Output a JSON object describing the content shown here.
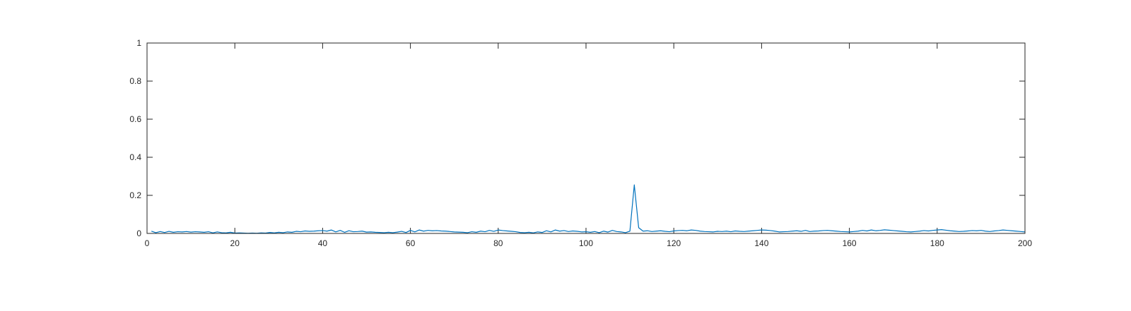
{
  "chart_data": {
    "type": "line",
    "title": "",
    "xlabel": "",
    "ylabel": "",
    "xlim": [
      0,
      200
    ],
    "ylim": [
      0,
      1
    ],
    "xticks": [
      0,
      20,
      40,
      60,
      80,
      100,
      120,
      140,
      160,
      180,
      200
    ],
    "yticks": [
      0,
      0.2,
      0.4,
      0.6,
      0.8,
      1
    ],
    "xtick_labels": [
      "0",
      "20",
      "40",
      "60",
      "80",
      "100",
      "120",
      "140",
      "160",
      "180",
      "200"
    ],
    "ytick_labels": [
      "0",
      "0.2",
      "0.4",
      "0.6",
      "0.8",
      "1"
    ],
    "grid": false,
    "legend": "none",
    "line_color": "#0072BD",
    "series": [
      {
        "x_start": 1,
        "x_step": 1,
        "values": [
          0.012,
          0.004,
          0.01,
          0.005,
          0.011,
          0.006,
          0.009,
          0.008,
          0.01,
          0.007,
          0.009,
          0.008,
          0.006,
          0.009,
          0.003,
          0.008,
          0.004,
          0.003,
          0.006,
          0.002,
          0.003,
          0.002,
          0.001,
          0.002,
          0.001,
          0.003,
          0.002,
          0.005,
          0.003,
          0.006,
          0.004,
          0.008,
          0.006,
          0.011,
          0.009,
          0.013,
          0.011,
          0.012,
          0.014,
          0.015,
          0.012,
          0.018,
          0.008,
          0.016,
          0.006,
          0.014,
          0.009,
          0.01,
          0.012,
          0.007,
          0.008,
          0.006,
          0.005,
          0.004,
          0.006,
          0.004,
          0.007,
          0.011,
          0.005,
          0.016,
          0.008,
          0.018,
          0.012,
          0.016,
          0.014,
          0.015,
          0.013,
          0.012,
          0.01,
          0.008,
          0.007,
          0.006,
          0.004,
          0.009,
          0.006,
          0.012,
          0.009,
          0.016,
          0.011,
          0.018,
          0.015,
          0.013,
          0.011,
          0.009,
          0.005,
          0.004,
          0.006,
          0.003,
          0.008,
          0.005,
          0.014,
          0.008,
          0.018,
          0.012,
          0.015,
          0.01,
          0.013,
          0.011,
          0.008,
          0.009,
          0.006,
          0.01,
          0.004,
          0.012,
          0.007,
          0.016,
          0.01,
          0.008,
          0.004,
          0.012,
          0.255,
          0.03,
          0.012,
          0.014,
          0.01,
          0.012,
          0.014,
          0.011,
          0.009,
          0.013,
          0.015,
          0.016,
          0.014,
          0.018,
          0.016,
          0.012,
          0.01,
          0.009,
          0.008,
          0.011,
          0.01,
          0.012,
          0.009,
          0.013,
          0.011,
          0.01,
          0.012,
          0.014,
          0.016,
          0.018,
          0.017,
          0.015,
          0.012,
          0.008,
          0.009,
          0.01,
          0.012,
          0.014,
          0.011,
          0.016,
          0.01,
          0.012,
          0.013,
          0.015,
          0.016,
          0.014,
          0.012,
          0.01,
          0.009,
          0.008,
          0.01,
          0.012,
          0.016,
          0.013,
          0.018,
          0.014,
          0.016,
          0.019,
          0.017,
          0.015,
          0.013,
          0.011,
          0.009,
          0.008,
          0.01,
          0.012,
          0.015,
          0.013,
          0.016,
          0.018,
          0.02,
          0.017,
          0.014,
          0.012,
          0.01,
          0.011,
          0.013,
          0.015,
          0.014,
          0.016,
          0.012,
          0.01,
          0.013,
          0.015,
          0.018,
          0.016,
          0.014,
          0.012,
          0.01,
          0.008
        ]
      }
    ]
  }
}
